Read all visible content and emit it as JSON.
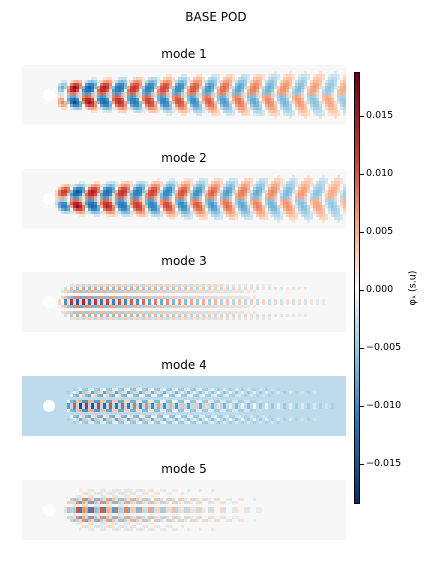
{
  "suptitle": "BASE POD",
  "modes": [
    {
      "title": "mode 1"
    },
    {
      "title": "mode 2"
    },
    {
      "title": "mode 3"
    },
    {
      "title": "mode 4"
    },
    {
      "title": "mode 5"
    }
  ],
  "colorbar": {
    "label": "φₓ (s.u)",
    "colormap": "RdBu_r",
    "low_color": "#0b2f5d",
    "mid_color": "#f7f7f7",
    "high_color": "#6b0015",
    "ticks": [
      "0.015",
      "0.010",
      "0.005",
      "0.000",
      "−0.005",
      "−0.010",
      "−0.015"
    ]
  },
  "chart_data": {
    "type": "heatmap",
    "title": "BASE POD",
    "panels": [
      "mode 1",
      "mode 2",
      "mode 3",
      "mode 4",
      "mode 5"
    ],
    "colorbar_label": "φₓ (s.u)",
    "colorbar_range": [
      -0.019,
      0.019
    ],
    "colorbar_ticks": [
      -0.015,
      -0.01,
      -0.005,
      0.0,
      0.005,
      0.01,
      0.015
    ],
    "background_value": {
      "mode 1": 0.0,
      "mode 2": 0.0,
      "mode 3": 0.0,
      "mode 4": -0.002,
      "mode 5": 0.0
    },
    "peak_magnitude": {
      "mode 1": 0.019,
      "mode 2": 0.019,
      "mode 3": 0.019,
      "mode 4": 0.019,
      "mode 5": 0.017
    }
  }
}
